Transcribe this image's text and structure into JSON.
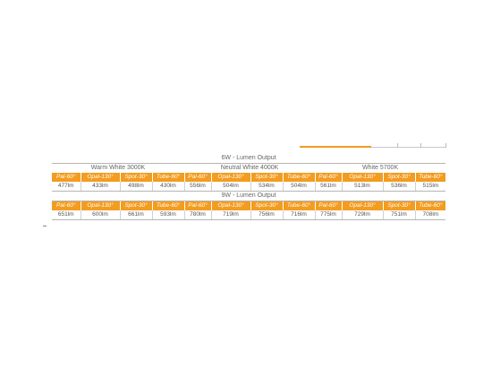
{
  "table_6w": {
    "title": "6W - Lumen Output",
    "groups": [
      "Warm White 3000K",
      "Neutral White 4000K",
      "White 5700K"
    ],
    "headers": [
      "Pal-60°",
      "Opal-130°",
      "Spot-30°",
      "Tube-60°",
      "Pal-60°",
      "Opal-130°",
      "Spot-30°",
      "Tube-60°",
      "Pal-60°",
      "Opal-130°",
      "Spot-30°",
      "Tube-60°"
    ],
    "values": [
      "477lm",
      "433lm",
      "498lm",
      "430lm",
      "556lm",
      "504lm",
      "534lm",
      "504lm",
      "561lm",
      "513lm",
      "536lm",
      "515lm"
    ]
  },
  "table_9w": {
    "title": "9W - Lumen Output",
    "headers": [
      "Pal-60°",
      "Opal-130°",
      "Spot-30°",
      "Tube-60°",
      "Pal-60°",
      "Opal-130°",
      "Spot-30°",
      "Tube-60°",
      "Pal-60°",
      "Opal-130°",
      "Spot-30°",
      "Tube-60°"
    ],
    "values": [
      "651lm",
      "600lm",
      "661lm",
      "593lm",
      "780lm",
      "719lm",
      "756lm",
      "716lm",
      "775lm",
      "729lm",
      "751lm",
      "708lm"
    ]
  },
  "colors": {
    "accent": "#f39c1f",
    "text": "#555555",
    "rule": "#b5b5b5"
  }
}
